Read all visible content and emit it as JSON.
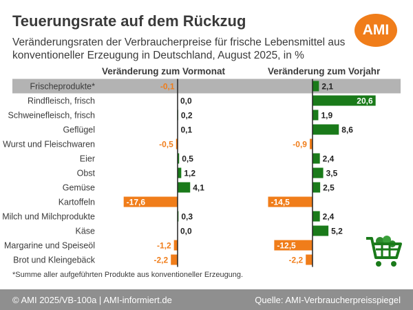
{
  "title": "Teuerungsrate auf dem Rückzug",
  "subtitle": "Veränderungsraten der Verbraucherpreise für frische Lebensmittel aus konventioneller Erzeugung in Deutschland, August 2025, in %",
  "logo_text": "AMI",
  "footnote": "*Summe aller aufgeführten Produkte aus konventioneller Erzeugung.",
  "footer": {
    "left": "© AMI 2025/VB-100a | AMI-informiert.de",
    "right": "Quelle: AMI-Verbraucherpreisspiegel"
  },
  "colors": {
    "positive": "#1a7a1a",
    "negative": "#f07d1a",
    "highlight_row": "#b3b3b3",
    "footer": "#8f8f8f",
    "logo": "#f07d1a"
  },
  "icons": [
    "shopping-cart-icon"
  ],
  "chart_data": [
    {
      "type": "bar",
      "orientation": "horizontal",
      "title": "Veränderung zum Vormonat",
      "categories": [
        "Frischeprodukte*",
        "Rindfleisch, frisch",
        "Schweinefleisch, frisch",
        "Geflügel",
        "Wurst und Fleischwaren",
        "Eier",
        "Obst",
        "Gemüse",
        "Kartoffeln",
        "Milch und Milchprodukte",
        "Käse",
        "Margarine und Speiseöl",
        "Brot und Kleingebäck"
      ],
      "values": [
        -0.1,
        0.0,
        0.2,
        0.1,
        -0.5,
        0.5,
        1.2,
        4.1,
        -17.6,
        0.3,
        0.0,
        -1.2,
        -2.2
      ],
      "labels": [
        "-0,1",
        "0,0",
        "0,2",
        "0,1",
        "-0,5",
        "0,5",
        "1,2",
        "4,1",
        "-17,6",
        "0,3",
        "0,0",
        "-1,2",
        "-2,2"
      ]
    },
    {
      "type": "bar",
      "orientation": "horizontal",
      "title": "Veränderung zum Vorjahr",
      "categories": [
        "Frischeprodukte*",
        "Rindfleisch, frisch",
        "Schweinefleisch, frisch",
        "Geflügel",
        "Wurst und Fleischwaren",
        "Eier",
        "Obst",
        "Gemüse",
        "Kartoffeln",
        "Milch und Milchprodukte",
        "Käse",
        "Margarine und Speiseöl",
        "Brot und Kleingebäck"
      ],
      "values": [
        2.1,
        20.6,
        1.9,
        8.6,
        -0.9,
        2.4,
        3.5,
        2.5,
        -14.5,
        2.4,
        5.2,
        -12.5,
        -2.2
      ],
      "labels": [
        "2,1",
        "20,6",
        "1,9",
        "8,6",
        "-0,9",
        "2,4",
        "3,5",
        "2,5",
        "-14,5",
        "2,4",
        "5,2",
        "-12,5",
        "-2,2"
      ]
    }
  ]
}
